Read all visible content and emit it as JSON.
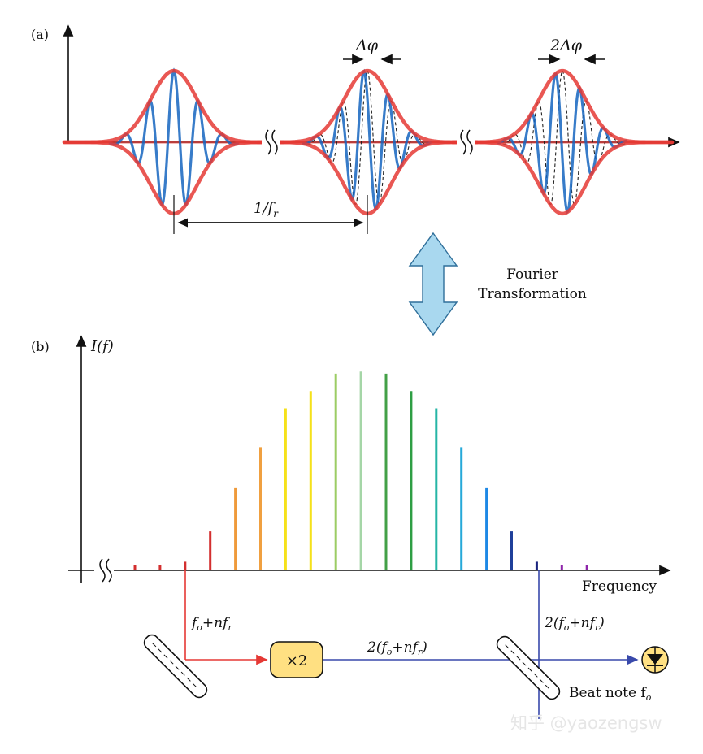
{
  "panel_a": {
    "label": "(a)",
    "delta_phi": "Δφ",
    "two_delta_phi": "2Δφ",
    "period_label_main": "1/f",
    "period_label_sub": "r"
  },
  "transform": {
    "line1": "Fourier",
    "line2": "Transformation"
  },
  "panel_b": {
    "label": "(b)",
    "y_axis": "I(f)",
    "x_axis": "Frequency",
    "comb_colors": [
      "#d32f2f",
      "#d32f2f",
      "#d32f2f",
      "#d32f2f",
      "#ef9a3a",
      "#f0a040",
      "#f5e11a",
      "#f5e11a",
      "#9ccc65",
      "#a5d6a7",
      "#43a047",
      "#2e9e44",
      "#26b5a6",
      "#26a9d9",
      "#1e88e5",
      "#1f3f9a",
      "#1a237e",
      "#8e24aa",
      "#8e24aa"
    ],
    "comb_heights": [
      0.02,
      0.02,
      0.04,
      0.18,
      0.38,
      0.57,
      0.75,
      0.83,
      0.91,
      0.92,
      0.91,
      0.83,
      0.75,
      0.57,
      0.38,
      0.18,
      0.04,
      0.02,
      0.02
    ],
    "left_branch": "f_o+nf_r",
    "doubler": "×2",
    "doubled": "2(f_o+nf_r)",
    "right_branch": "2(f_o+nf_r)",
    "beat_note": "Beat note f",
    "beat_sub": "o"
  },
  "watermark": "知乎 @yaozengsw"
}
